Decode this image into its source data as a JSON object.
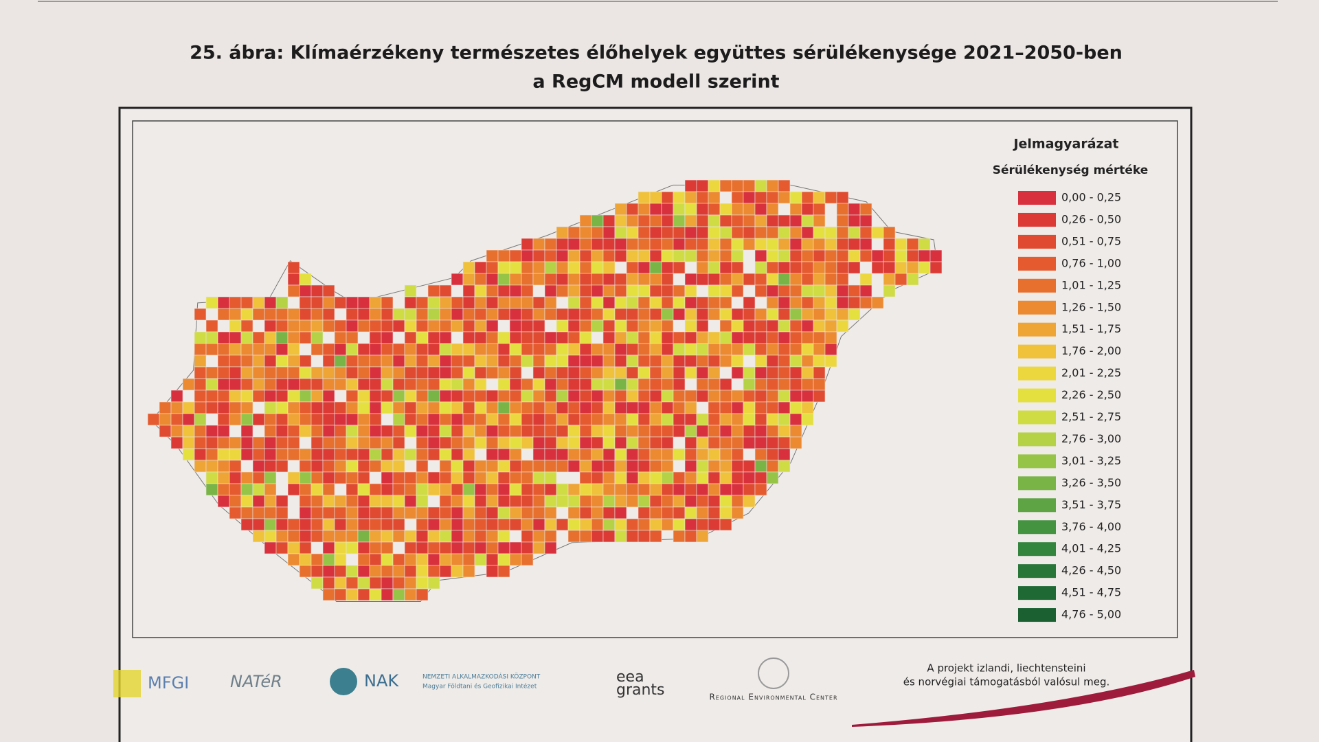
{
  "title": {
    "line1": "25. ábra: Klímaérzékeny természetes élőhelyek együttes sérülékenysége 2021–2050-ben",
    "line2": "a RegCM modell szerint"
  },
  "legend": {
    "title": "Jelmagyarázat",
    "subtitle": "Sérülékenység mértéke",
    "items": [
      {
        "label": "0,00 - 0,25",
        "color": "#d8303c"
      },
      {
        "label": "0,26 - 0,50",
        "color": "#dc3a35"
      },
      {
        "label": "0,51 - 0,75",
        "color": "#e04a30"
      },
      {
        "label": "0,76 - 1,00",
        "color": "#e55a2e"
      },
      {
        "label": "1,01 - 1,25",
        "color": "#e8702f"
      },
      {
        "label": "1,26 - 1,50",
        "color": "#ec8a32"
      },
      {
        "label": "1,51 - 1,75",
        "color": "#efa436"
      },
      {
        "label": "1,76 - 2,00",
        "color": "#f0c23b"
      },
      {
        "label": "2,01 - 2,25",
        "color": "#ecd83e"
      },
      {
        "label": "2,26 - 2,50",
        "color": "#e4e040"
      },
      {
        "label": "2,51 - 2,75",
        "color": "#cfdc44"
      },
      {
        "label": "2,76 - 3,00",
        "color": "#b5d247"
      },
      {
        "label": "3,01 - 3,25",
        "color": "#96c447"
      },
      {
        "label": "3,26 - 3,50",
        "color": "#78b446"
      },
      {
        "label": "3,51 - 3,75",
        "color": "#5ea444"
      },
      {
        "label": "3,76 - 4,00",
        "color": "#449340"
      },
      {
        "label": "4,01 - 4,25",
        "color": "#33843c"
      },
      {
        "label": "4,26 - 4,50",
        "color": "#287638"
      },
      {
        "label": "4,51 - 4,75",
        "color": "#1f6a34"
      },
      {
        "label": "4,76 - 5,00",
        "color": "#1a6030"
      }
    ]
  },
  "footer": {
    "logos": {
      "mfgi": "MFGI",
      "nater": "NATéR",
      "nak": "NAK",
      "nak_sub1": "NEMZETI ALKALMAZKODÁSI KÖZPONT",
      "nak_sub2": "Magyar Földtani és Geofizikai Intézet",
      "eea1": "eea",
      "eea2": "grants",
      "rec": "Regional Environmental Center"
    },
    "note": {
      "line1": "A projekt izlandi, liechtensteini",
      "line2": "és norvégiai támogatásból valósul meg."
    }
  }
}
